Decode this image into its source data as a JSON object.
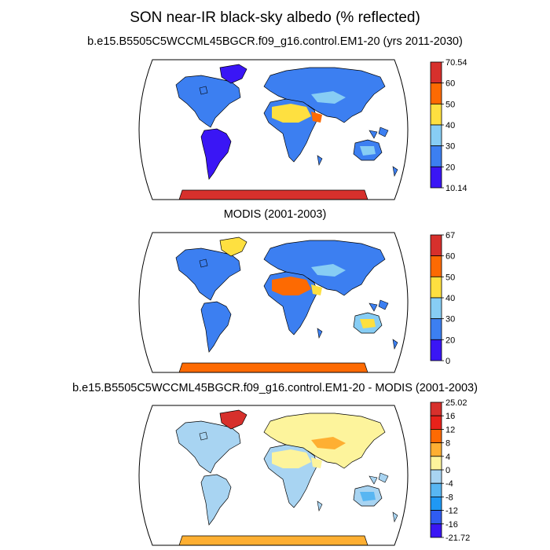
{
  "title": "SON near-IR black-sky albedo (% reflected)",
  "panels": [
    {
      "subtitle": "b.e15.B5505C5WCCML45BGCR.f09_g16.control.EM1-20 (yrs 2011-2030)",
      "colorbar": {
        "labels": [
          "70.54",
          "60",
          "50",
          "40",
          "30",
          "20",
          "10.14"
        ],
        "colors": [
          "#d7302c",
          "#fd6a02",
          "#fee040",
          "#87cdf4",
          "#3c7ff1",
          "#3a16f5"
        ]
      }
    },
    {
      "subtitle": "MODIS (2001-2003)",
      "colorbar": {
        "labels": [
          "67",
          "60",
          "50",
          "40",
          "30",
          "20",
          "0"
        ],
        "colors": [
          "#d7302c",
          "#fd6a02",
          "#fee040",
          "#87cdf4",
          "#3c7ff1",
          "#3a16f5"
        ]
      }
    },
    {
      "subtitle": "b.e15.B5505C5WCCML45BGCR.f09_g16.control.EM1-20 - MODIS (2001-2003)",
      "colorbar": {
        "labels": [
          "25.02",
          "16",
          "12",
          "8",
          "4",
          "0",
          "-4",
          "-8",
          "-12",
          "-16",
          "-21.72"
        ],
        "colors": [
          "#d7302c",
          "#e8221a",
          "#fd6a02",
          "#feaf32",
          "#fdf49c",
          "#a8d4f2",
          "#58b6f2",
          "#1f98f4",
          "#2f5cf1",
          "#3a16f5"
        ]
      }
    }
  ]
}
